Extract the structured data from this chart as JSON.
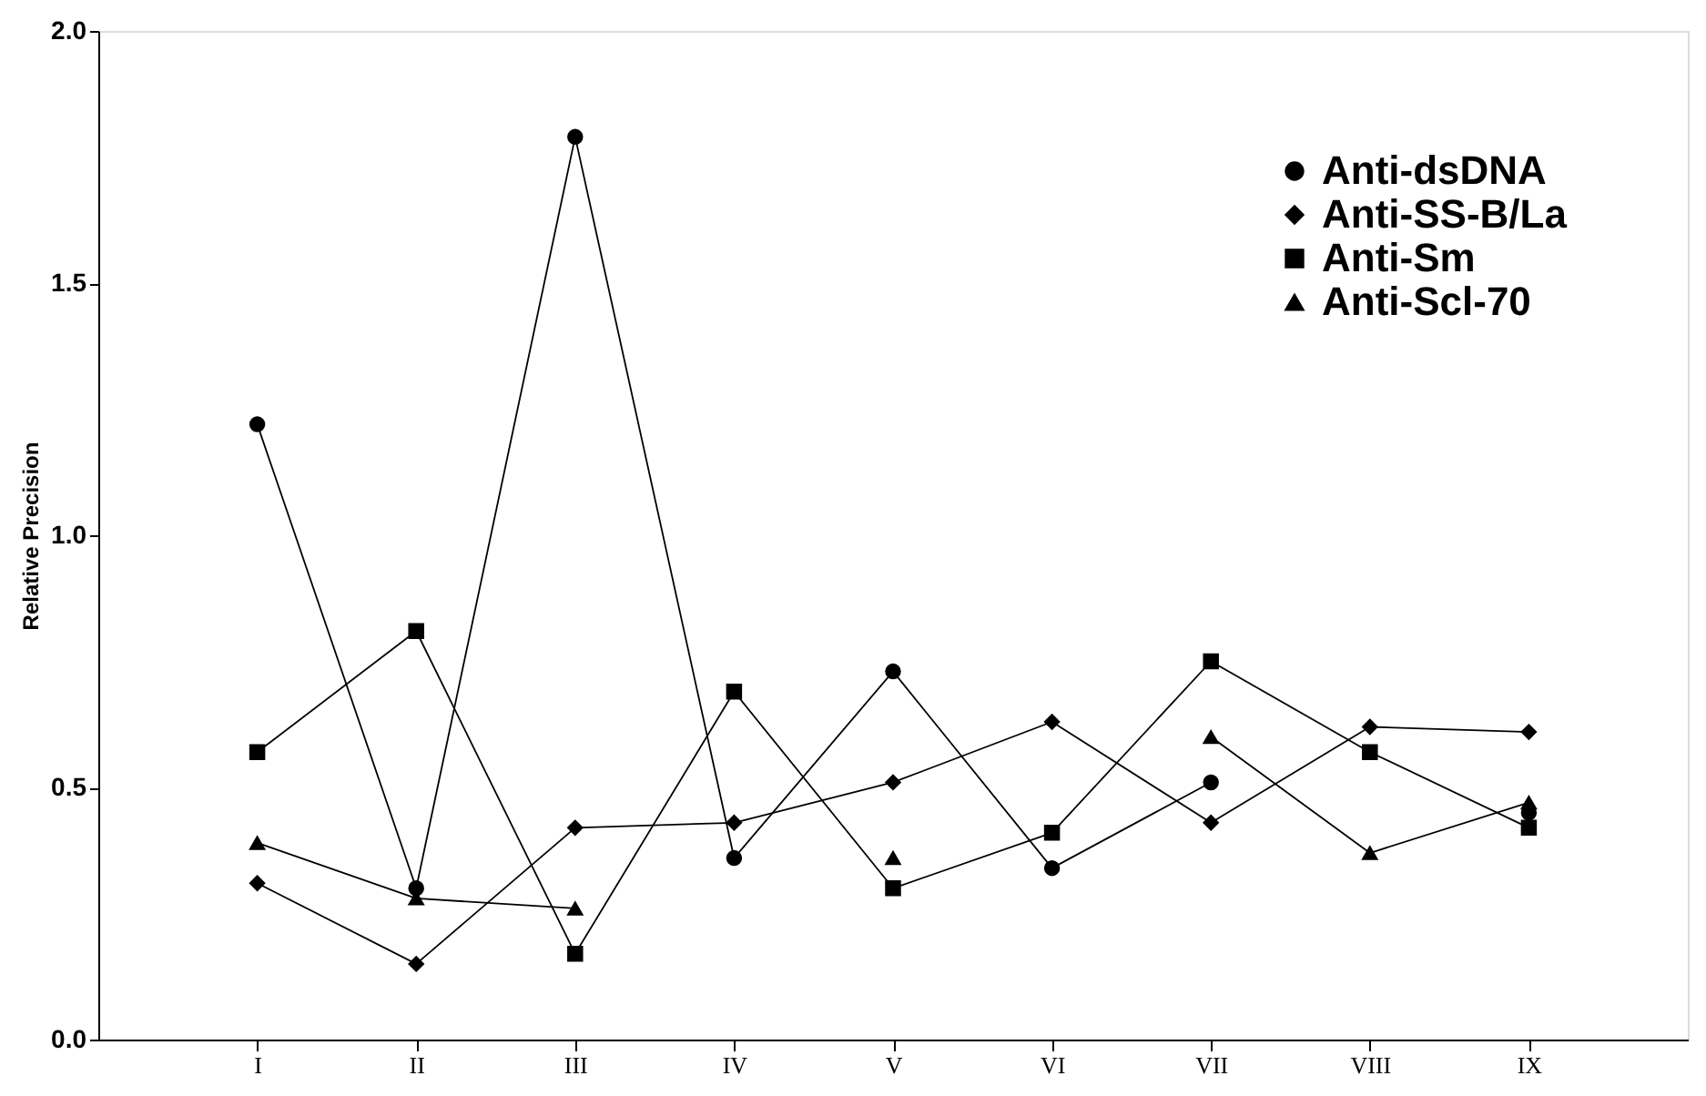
{
  "chart_data": {
    "type": "line",
    "ylabel": "Relative Precision",
    "categories": [
      "I",
      "II",
      "III",
      "IV",
      "V",
      "VI",
      "VII",
      "VIII",
      "IX"
    ],
    "series": [
      {
        "name": "Anti-dsDNA",
        "color": "#000000",
        "marker": "circle",
        "values": [
          1.22,
          0.3,
          1.79,
          0.36,
          0.73,
          0.34,
          0.51,
          null,
          0.45
        ]
      },
      {
        "name": "Anti-SS-B/La",
        "color": "#000000",
        "marker": "diamond",
        "values": [
          0.31,
          0.15,
          0.42,
          0.43,
          0.51,
          0.63,
          0.43,
          0.62,
          0.61
        ]
      },
      {
        "name": "Anti-Sm",
        "color": "#000000",
        "marker": "square",
        "values": [
          0.57,
          0.81,
          0.17,
          0.69,
          0.3,
          0.41,
          0.75,
          0.57,
          0.42
        ]
      },
      {
        "name": "Anti-Scl-70",
        "color": "#000000",
        "marker": "triangle",
        "values": [
          0.39,
          0.28,
          0.26,
          null,
          0.36,
          null,
          0.6,
          0.37,
          0.47
        ]
      }
    ],
    "ylim": [
      0,
      2
    ],
    "yticks": [
      {
        "value": 0,
        "label": "0.0"
      },
      0.5,
      {
        "value": 1,
        "label": "1.0"
      },
      1.5,
      {
        "value": 2,
        "label": "2.0"
      }
    ],
    "grid": false,
    "legend": "top right",
    "line_style": "solid"
  }
}
